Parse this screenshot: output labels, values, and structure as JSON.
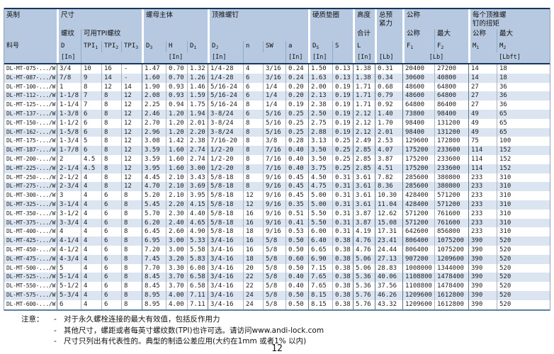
{
  "page": {
    "number": "12"
  },
  "colors": {
    "header_bg": "#b7c9e1",
    "row_alt_bg": "#dbe5f1",
    "header_border": "#16365c",
    "table_bottom_border": "#5b7fa6"
  },
  "notes": {
    "label": "注意：",
    "items": [
      "对于永久螺栓连接的最大有效值，包括反作用力",
      "其他尺寸，螺距或者每英寸螺纹数(TPI)也许可选。请访问www.andi-lock.com",
      "尺寸只列出有代表性的。典型的制造公差应用(大约在1mm 或者1% 以内)"
    ]
  },
  "table": {
    "col_names": [
      "part-number",
      "thread-d",
      "tpi-1",
      "tpi-2",
      "tpi-3",
      "body-d3",
      "body-h",
      "body-d1",
      "jackscrew-dj",
      "jackscrew-n",
      "jackscrew-sw",
      "jackscrew-a",
      "washer-ds",
      "washer-s",
      "height-l",
      "weight-lb",
      "preload-f1-nominal",
      "preload-f2-max",
      "torque-m1-nominal",
      "torque-m2-max"
    ],
    "group_start_cols": [
      2,
      6,
      9,
      13,
      15,
      16,
      17,
      19
    ],
    "sub_start_cols": [
      3,
      4,
      5,
      7,
      8,
      10,
      11,
      12,
      14,
      18,
      20
    ],
    "header_rows": [
      [
        {
          "t": "英制",
          "s": 1
        },
        {
          "t": "尺寸",
          "s": 4
        },
        {
          "t": "螺母主体",
          "s": 3
        },
        {
          "t": "顶推螺钉",
          "s": 4
        },
        {
          "t": "硬质垫圈",
          "s": 2
        },
        {
          "t": "高度",
          "s": 1
        },
        {
          "t": "总预\n紧力",
          "s": 1
        },
        {
          "t": "公称",
          "s": 2
        },
        {
          "t": "每个顶推螺\n钉的扭矩",
          "s": 2
        }
      ],
      [
        {
          "t": "",
          "s": 1
        },
        {
          "t": "螺纹",
          "s": 1
        },
        {
          "t": "可用TPI螺纹",
          "s": 3
        },
        {
          "t": "",
          "s": 3
        },
        {
          "t": "",
          "s": 4
        },
        {
          "t": "",
          "s": 2
        },
        {
          "t": "合计",
          "s": 1
        },
        {
          "t": "",
          "s": 1
        },
        {
          "t": "公称",
          "s": 1
        },
        {
          "t": "最大",
          "s": 1
        },
        {
          "t": "公称",
          "s": 1
        },
        {
          "t": "最大",
          "s": 1
        }
      ],
      [
        {
          "t": "料号",
          "s": 1
        },
        {
          "t": "D",
          "s": 1
        },
        {
          "t": "TPI",
          "sub": "1",
          "s": 1
        },
        {
          "t": "TPI",
          "sub": "2",
          "s": 1
        },
        {
          "t": "TPI",
          "sub": "3",
          "s": 1
        },
        {
          "t": "D",
          "sub": "3",
          "s": 1
        },
        {
          "t": "H",
          "s": 1
        },
        {
          "t": "D",
          "sub": "1",
          "s": 1
        },
        {
          "t": "D",
          "sub": "J",
          "s": 1
        },
        {
          "t": "n",
          "s": 1
        },
        {
          "t": "SW",
          "s": 1
        },
        {
          "t": "a",
          "s": 1
        },
        {
          "t": "D",
          "sub": "S",
          "s": 1
        },
        {
          "t": "S",
          "s": 1
        },
        {
          "t": "L",
          "s": 1
        },
        {
          "t": "",
          "s": 1
        },
        {
          "t": "F",
          "sub": "1",
          "s": 1
        },
        {
          "t": "F",
          "sub": "2",
          "s": 1
        },
        {
          "t": "M",
          "sub": "1",
          "s": 1
        },
        {
          "t": "M",
          "sub": "2",
          "s": 1
        }
      ],
      [
        {
          "t": "",
          "s": 1
        },
        {
          "t": "[In]",
          "s": 1
        },
        {
          "t": "",
          "s": 3
        },
        {
          "t": "[In]",
          "s": 3,
          "c": 1
        },
        {
          "t": "[In]",
          "s": 1
        },
        {
          "t": "",
          "s": 2
        },
        {
          "t": "[In]",
          "s": 1
        },
        {
          "t": "[In]",
          "s": 1
        },
        {
          "t": "",
          "s": 1
        },
        {
          "t": "[In]",
          "s": 1
        },
        {
          "t": "[Lb]",
          "s": 1
        },
        {
          "t": "[Lb]",
          "s": 2,
          "c": 1
        },
        {
          "t": "[Lbft]",
          "s": 2,
          "c": 1
        }
      ]
    ],
    "rows": [
      [
        "DL-MT-075-.../W",
        "3/4",
        "10",
        "16",
        "-",
        "1.47",
        "0.70",
        "1.32",
        "1/4-28",
        "4",
        "3/16",
        "0.24",
        "1.50",
        "0.13",
        "1.38",
        "0.31",
        "20400",
        "27200",
        "14",
        "18"
      ],
      [
        "DL-MT-087-.../W",
        "7/8",
        "9",
        "14",
        "-",
        "1.60",
        "0.70",
        "1.26",
        "1/4-28",
        "6",
        "3/16",
        "0.24",
        "1.63",
        "0.13",
        "1.38",
        "0.34",
        "30600",
        "40800",
        "14",
        "18"
      ],
      [
        "DL-MT-100-.../W",
        "1",
        "8",
        "12",
        "14",
        "1.90",
        "0.93",
        "1.46",
        "5/16-24",
        "6",
        "1/4",
        "0.20",
        "2.00",
        "0.19",
        "1.71",
        "0.68",
        "48600",
        "64800",
        "27",
        "36"
      ],
      [
        "DL-MT-112-.../W",
        "1-1/8",
        "7",
        "8",
        "12",
        "2.08",
        "0.93",
        "1.59",
        "5/16-24",
        "6",
        "1/4",
        "0.20",
        "2.13",
        "0.19",
        "1.71",
        "0.79",
        "48600",
        "64800",
        "27",
        "36"
      ],
      [
        "DL-MT-125-.../W",
        "1-1/4",
        "7",
        "8",
        "12",
        "2.25",
        "0.94",
        "1.75",
        "5/16-24",
        "8",
        "1/4",
        "0.19",
        "2.38",
        "0.19",
        "1.71",
        "0.92",
        "64800",
        "86400",
        "27",
        "36"
      ],
      [
        "DL-MT-137-.../W",
        "1-3/8",
        "6",
        "8",
        "12",
        "2.46",
        "1.20",
        "1.94",
        "3-8/24",
        "6",
        "5/16",
        "0.25",
        "2.50",
        "0.19",
        "2.12",
        "1.40",
        "73800",
        "98400",
        "49",
        "65"
      ],
      [
        "DL-MT-150-.../W",
        "1-1/2",
        "6",
        "8",
        "12",
        "2.70",
        "1.20",
        "2.01",
        "3-8/24",
        "8",
        "5/16",
        "0.25",
        "2.75",
        "0.19",
        "2.12",
        "1.70",
        "98400",
        "131200",
        "49",
        "65"
      ],
      [
        "DL-MT-162-.../W",
        "1-5/8",
        "6",
        "8",
        "12",
        "2.96",
        "1.20",
        "2.20",
        "3-8/24",
        "8",
        "5/16",
        "0.25",
        "2.88",
        "0.19",
        "2.12",
        "2.01",
        "98400",
        "131200",
        "49",
        "65"
      ],
      [
        "DL-MT-175-.../W",
        "1-3/4",
        "5",
        "8",
        "12",
        "3.08",
        "1.42",
        "2.38",
        "7/16-20",
        "8",
        "3/8",
        "0.28",
        "3.13",
        "0.25",
        "2.49",
        "2.53",
        "129600",
        "172800",
        "75",
        "100"
      ],
      [
        "DL-MT-187-.../W",
        "1-7/8",
        "6",
        "8",
        "12",
        "3.59",
        "1.60",
        "2.74",
        "1/2-20",
        "8",
        "7/16",
        "0.40",
        "3.50",
        "0.25",
        "2.85",
        "4.07",
        "175200",
        "233600",
        "114",
        "152"
      ],
      [
        "DL-MT-200-.../W",
        "2",
        "4.5",
        "8",
        "12",
        "3.59",
        "1.60",
        "2.74",
        "1/2-20",
        "8",
        "7/16",
        "0.40",
        "3.50",
        "0.25",
        "2.85",
        "3.87",
        "175200",
        "233600",
        "114",
        "152"
      ],
      [
        "DL-MT-225-.../W",
        "2-1/4",
        "4.5",
        "8",
        "12",
        "3.95",
        "1.60",
        "3.00",
        "1/2-20",
        "8",
        "7/16",
        "0.40",
        "3.75",
        "0.25",
        "2.85",
        "4.51",
        "175200",
        "233600",
        "114",
        "152"
      ],
      [
        "DL-MT-250-.../W",
        "2-1/2",
        "4",
        "8",
        "12",
        "4.45",
        "2.10",
        "3.43",
        "5/8-18",
        "8",
        "9/16",
        "0.45",
        "4.50",
        "0.31",
        "3.61",
        "7.82",
        "285600",
        "380800",
        "233",
        "310"
      ],
      [
        "DL-MT-275-.../W",
        "2-3/4",
        "4",
        "8",
        "12",
        "4.70",
        "2.10",
        "3.69",
        "5/8-18",
        "8",
        "9/16",
        "0.45",
        "4.75",
        "0.31",
        "3.61",
        "8.36",
        "285600",
        "380800",
        "233",
        "310"
      ],
      [
        "DL-MT-300-.../W",
        "3",
        "4",
        "6",
        "8",
        "5.20",
        "2.10",
        "3.95",
        "5/8-18",
        "12",
        "9/16",
        "0.45",
        "5.00",
        "0.31",
        "3.61",
        "10.30",
        "428400",
        "571200",
        "233",
        "310"
      ],
      [
        "DL-MT-325-.../W",
        "3-1/4",
        "4",
        "6",
        "8",
        "5.45",
        "2.20",
        "4.15",
        "5/8-18",
        "12",
        "9/16",
        "0.35",
        "5.00",
        "0.31",
        "3.61",
        "11.04",
        "428400",
        "571200",
        "233",
        "310"
      ],
      [
        "DL-MT-350-.../W",
        "3-1/2",
        "4",
        "6",
        "8",
        "5.70",
        "2.30",
        "4.40",
        "5/8-18",
        "16",
        "9/16",
        "0.51",
        "5.50",
        "0.31",
        "3.87",
        "12.62",
        "571200",
        "761600",
        "233",
        "310"
      ],
      [
        "DL-MT-375-.../W",
        "3-3/4",
        "4",
        "6",
        "8",
        "6.20",
        "2.40",
        "4.65",
        "5/8-18",
        "16",
        "9/16",
        "0.41",
        "5.50",
        "0.31",
        "3.87",
        "15.08",
        "571200",
        "761600",
        "233",
        "310"
      ],
      [
        "DL-MT-400-.../W",
        "4",
        "4",
        "6",
        "8",
        "6.45",
        "2.60",
        "4.90",
        "5/8-18",
        "18",
        "9/16",
        "0.53",
        "6.00",
        "0.31",
        "4.19",
        "17.31",
        "642600",
        "856800",
        "233",
        "310"
      ],
      [
        "DL-MT-425-.../W",
        "4-1/4",
        "4",
        "6",
        "8",
        "6.95",
        "3.00",
        "5.33",
        "3/4-16",
        "16",
        "5/8",
        "0.50",
        "6.40",
        "0.38",
        "4.76",
        "23.41",
        "806400",
        "1075200",
        "390",
        "520"
      ],
      [
        "DL-MT-450-.../W",
        "4-1/2",
        "4",
        "6",
        "8",
        "7.20",
        "3.00",
        "5.58",
        "3/4-16",
        "16",
        "5/8",
        "0.50",
        "6.65",
        "0.38",
        "4.76",
        "24.44",
        "806400",
        "1075200",
        "390",
        "520"
      ],
      [
        "DL-MT-475-.../W",
        "4-3/4",
        "4",
        "6",
        "8",
        "7.45",
        "3.20",
        "5.83",
        "3/4-16",
        "18",
        "5/8",
        "0.60",
        "6.90",
        "0.38",
        "5.06",
        "27.13",
        "907200",
        "1209600",
        "390",
        "520"
      ],
      [
        "DL-MT-500-.../W",
        "5",
        "4",
        "6",
        "8",
        "7.70",
        "3.30",
        "6.08",
        "3/4-16",
        "20",
        "5/8",
        "0.50",
        "7.15",
        "0.38",
        "5.06",
        "28.83",
        "1008000",
        "1344000",
        "390",
        "520"
      ],
      [
        "DL-MT-525-.../W",
        "5-1/4",
        "4",
        "6",
        "8",
        "8.45",
        "3.70",
        "6.58",
        "3/4-16",
        "22",
        "5/8",
        "0.40",
        "7.65",
        "0.38",
        "5.36",
        "40.06",
        "1108800",
        "1478400",
        "390",
        "520"
      ],
      [
        "DL-MT-550-.../W",
        "5-1/2",
        "4",
        "6",
        "8",
        "8.45",
        "3.70",
        "6.58",
        "3/4-16",
        "22",
        "5/8",
        "0.40",
        "7.65",
        "0.38",
        "5.36",
        "37.56",
        "1108800",
        "1478400",
        "390",
        "520"
      ],
      [
        "DL-MT-575-.../W",
        "5-3/4",
        "4",
        "6",
        "8",
        "8.95",
        "4.00",
        "7.11",
        "3/4-16",
        "24",
        "5/8",
        "0.50",
        "8.15",
        "0.38",
        "5.76",
        "46.26",
        "1209600",
        "1612800",
        "390",
        "520"
      ],
      [
        "DL-MT-600-.../W",
        "6",
        "4",
        "6",
        "8",
        "8.95",
        "4.00",
        "7.11",
        "3/4-16",
        "24",
        "5/8",
        "0.50",
        "8.15",
        "0.38",
        "5.76",
        "43.32",
        "1209600",
        "1612800",
        "390",
        "520"
      ]
    ]
  }
}
